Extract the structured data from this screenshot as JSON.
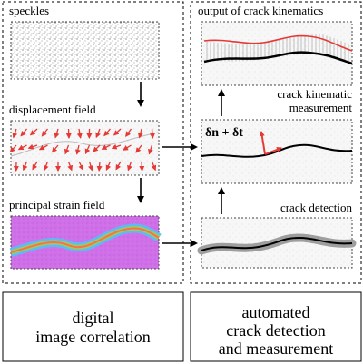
{
  "left_panel": {
    "steps": [
      {
        "label": "speckles"
      },
      {
        "label": "displacement field"
      },
      {
        "label": "principal strain field"
      }
    ],
    "caption_line1": "digital",
    "caption_line2": "image correlation"
  },
  "right_panel": {
    "steps": [
      {
        "label": "output of crack kinematics"
      },
      {
        "label_line1": "crack kinematic",
        "label_line2": "measurement",
        "formula": "δn + δt"
      },
      {
        "label": "crack detection"
      }
    ],
    "caption_line1": "automated",
    "caption_line2": "crack detection",
    "caption_line3": "and measurement"
  },
  "colors": {
    "crack_line": "#000000",
    "offset_line": "#e53935",
    "displacement_arrows": "#e53935",
    "detection_band": "#9e9e9e",
    "strain_background": "#d070e8"
  },
  "icons": [
    "arrow-down-icon",
    "arrow-up-icon",
    "arrow-right-icon"
  ]
}
